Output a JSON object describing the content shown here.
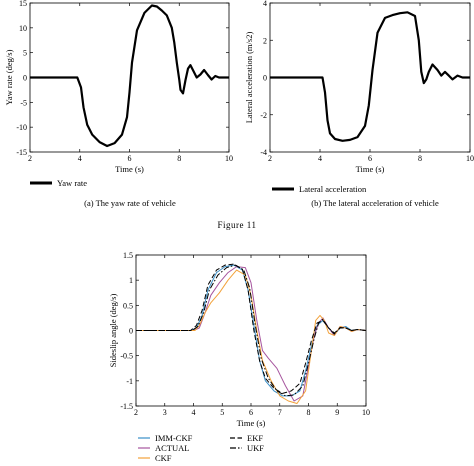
{
  "figure_label": "Figure 11",
  "chart_data": [
    {
      "type": "line",
      "id": "a",
      "caption": "(a)  The yaw rate of vehicle",
      "xlabel": "Time (s)",
      "ylabel": "Yaw rate (deg/s)",
      "xlim": [
        2,
        10
      ],
      "ylim": [
        -15,
        15
      ],
      "xticks": [
        2,
        4,
        6,
        8,
        10
      ],
      "yticks": [
        -15,
        -10,
        -5,
        0,
        5,
        10,
        15
      ],
      "grid": false,
      "legend_placement": "below",
      "series": [
        {
          "name": "Yaw rate",
          "color": "#000000",
          "x": [
            2,
            3,
            3.9,
            4.05,
            4.15,
            4.3,
            4.5,
            4.8,
            5.1,
            5.4,
            5.7,
            5.9,
            6.0,
            6.1,
            6.3,
            6.6,
            6.9,
            7.1,
            7.3,
            7.5,
            7.7,
            7.8,
            7.9,
            8.0,
            8.05,
            8.15,
            8.25,
            8.35,
            8.45,
            8.55,
            8.7,
            8.85,
            9.0,
            9.15,
            9.3,
            9.45,
            9.6,
            9.8,
            10
          ],
          "y": [
            0,
            0,
            0,
            -2,
            -6,
            -9.5,
            -11.5,
            -13,
            -13.8,
            -13.2,
            -11.5,
            -8,
            -3,
            3,
            9.5,
            13,
            14.5,
            14.3,
            13.5,
            12.5,
            10,
            7,
            3,
            -0.5,
            -2.5,
            -3.2,
            -0.5,
            1.8,
            2.5,
            1.5,
            0,
            0.6,
            1.5,
            0.5,
            -0.4,
            0.3,
            0,
            0,
            0
          ]
        }
      ]
    },
    {
      "type": "line",
      "id": "b",
      "caption": "(b)  The lateral acceleration of vehicle",
      "xlabel": "Time (s)",
      "ylabel": "Lateral acceleration (m/s2)",
      "xlim": [
        2,
        10
      ],
      "ylim": [
        -4,
        4
      ],
      "xticks": [
        2,
        4,
        6,
        8,
        10
      ],
      "yticks": [
        -4,
        -2,
        0,
        2,
        4
      ],
      "grid": false,
      "legend_placement": "below",
      "series": [
        {
          "name": "Lateral acceleration",
          "color": "#000000",
          "x": [
            2,
            3,
            4.1,
            4.2,
            4.3,
            4.4,
            4.6,
            4.9,
            5.2,
            5.5,
            5.8,
            5.95,
            6.1,
            6.3,
            6.6,
            6.9,
            7.2,
            7.5,
            7.8,
            7.95,
            8.05,
            8.15,
            8.25,
            8.35,
            8.5,
            8.7,
            8.85,
            9.0,
            9.15,
            9.3,
            9.5,
            9.7,
            10
          ],
          "y": [
            0,
            0,
            0,
            -0.8,
            -2.3,
            -3,
            -3.3,
            -3.4,
            -3.35,
            -3.2,
            -2.6,
            -1.5,
            0.4,
            2.4,
            3.2,
            3.35,
            3.45,
            3.5,
            3.3,
            2.0,
            0.3,
            -0.3,
            -0.1,
            0.3,
            0.7,
            0.4,
            0.1,
            0.3,
            0.1,
            -0.1,
            0.1,
            0,
            0
          ]
        }
      ]
    },
    {
      "type": "line",
      "id": "c",
      "xlabel": "Time (s)",
      "ylabel": "Sideslip angle (deg/s)",
      "xlim": [
        2,
        10
      ],
      "ylim": [
        -1.5,
        1.5
      ],
      "xticks": [
        2,
        3,
        4,
        5,
        6,
        7,
        8,
        9,
        10
      ],
      "yticks": [
        -1.5,
        -1,
        -0.5,
        0,
        0.5,
        1,
        1.5
      ],
      "grid": false,
      "legend_placement": "below",
      "series": [
        {
          "name": "IMM-CKF",
          "color": "#3a8fc7",
          "dash": "solid",
          "x": [
            2,
            3.9,
            4.1,
            4.3,
            4.5,
            4.8,
            5.1,
            5.4,
            5.7,
            5.9,
            6.1,
            6.3,
            6.5,
            6.8,
            7.1,
            7.4,
            7.7,
            7.9,
            8.1,
            8.3,
            8.5,
            8.7,
            8.9,
            9.1,
            9.3,
            9.5,
            9.7,
            10
          ],
          "y": [
            0,
            0,
            0.05,
            0.3,
            0.8,
            1.15,
            1.27,
            1.3,
            1.2,
            0.8,
            0.1,
            -0.6,
            -1.0,
            -1.2,
            -1.3,
            -1.3,
            -1.2,
            -0.8,
            -0.3,
            0.1,
            0.2,
            0.05,
            -0.08,
            0.05,
            0.08,
            0,
            0.02,
            0
          ]
        },
        {
          "name": "ACTUAL",
          "color": "#a6559e",
          "dash": "solid",
          "x": [
            2,
            4.0,
            4.2,
            4.4,
            4.6,
            4.9,
            5.2,
            5.5,
            5.8,
            6.0,
            6.2,
            6.4,
            6.6,
            6.9,
            7.2,
            7.5,
            7.8,
            8.0,
            8.2,
            8.35,
            8.5,
            8.7,
            8.9,
            9.1,
            9.3,
            9.5,
            9.7,
            10
          ],
          "y": [
            0,
            0,
            0.05,
            0.35,
            0.7,
            0.95,
            1.15,
            1.27,
            1.25,
            0.95,
            0.2,
            -0.4,
            -0.55,
            -0.75,
            -1.1,
            -1.4,
            -1.3,
            -0.7,
            -0.1,
            0.15,
            0.25,
            0.05,
            -0.1,
            0.08,
            0.05,
            -0.02,
            0.02,
            0
          ]
        },
        {
          "name": "CKF",
          "color": "#f2a23b",
          "dash": "solid",
          "x": [
            2,
            4.05,
            4.2,
            4.4,
            4.6,
            4.9,
            5.2,
            5.5,
            5.8,
            6.0,
            6.2,
            6.4,
            6.7,
            7.0,
            7.3,
            7.6,
            7.9,
            8.1,
            8.25,
            8.4,
            8.55,
            8.7,
            8.9,
            9.1,
            9.3,
            9.5,
            9.7,
            10
          ],
          "y": [
            0,
            0,
            0.1,
            0.35,
            0.55,
            0.75,
            1.0,
            1.2,
            1.1,
            0.7,
            0.0,
            -0.6,
            -1.0,
            -1.3,
            -1.4,
            -1.45,
            -1.2,
            -0.4,
            0.2,
            0.3,
            0.2,
            -0.05,
            -0.1,
            0.08,
            0.05,
            -0.02,
            0.02,
            0
          ]
        },
        {
          "name": "EKF",
          "color": "#000000",
          "dash": "dashed",
          "x": [
            2,
            3.9,
            4.1,
            4.3,
            4.5,
            4.8,
            5.1,
            5.4,
            5.7,
            5.9,
            6.1,
            6.3,
            6.5,
            6.8,
            7.1,
            7.4,
            7.7,
            7.9,
            8.1,
            8.3,
            8.5,
            8.7,
            8.9,
            9.1,
            9.3,
            9.5,
            9.7,
            10
          ],
          "y": [
            0,
            0,
            0.1,
            0.4,
            0.9,
            1.2,
            1.3,
            1.32,
            1.22,
            0.8,
            0.0,
            -0.6,
            -0.95,
            -1.15,
            -1.25,
            -1.2,
            -1.05,
            -0.65,
            -0.2,
            0.15,
            0.2,
            0.05,
            -0.05,
            0.05,
            0.05,
            0,
            0.02,
            0
          ]
        },
        {
          "name": "UKF",
          "color": "#000000",
          "dash": "dashdot",
          "x": [
            2,
            3.95,
            4.15,
            4.35,
            4.55,
            4.85,
            5.15,
            5.45,
            5.75,
            5.95,
            6.15,
            6.35,
            6.6,
            6.9,
            7.2,
            7.5,
            7.8,
            8.0,
            8.2,
            8.35,
            8.5,
            8.7,
            8.9,
            9.1,
            9.3,
            9.5,
            9.7,
            10
          ],
          "y": [
            0,
            0,
            0.08,
            0.35,
            0.8,
            1.1,
            1.25,
            1.3,
            1.2,
            0.85,
            0.1,
            -0.55,
            -0.95,
            -1.2,
            -1.3,
            -1.28,
            -1.1,
            -0.65,
            -0.15,
            0.15,
            0.22,
            0.05,
            -0.07,
            0.06,
            0.05,
            0,
            0.02,
            0
          ]
        }
      ]
    }
  ]
}
